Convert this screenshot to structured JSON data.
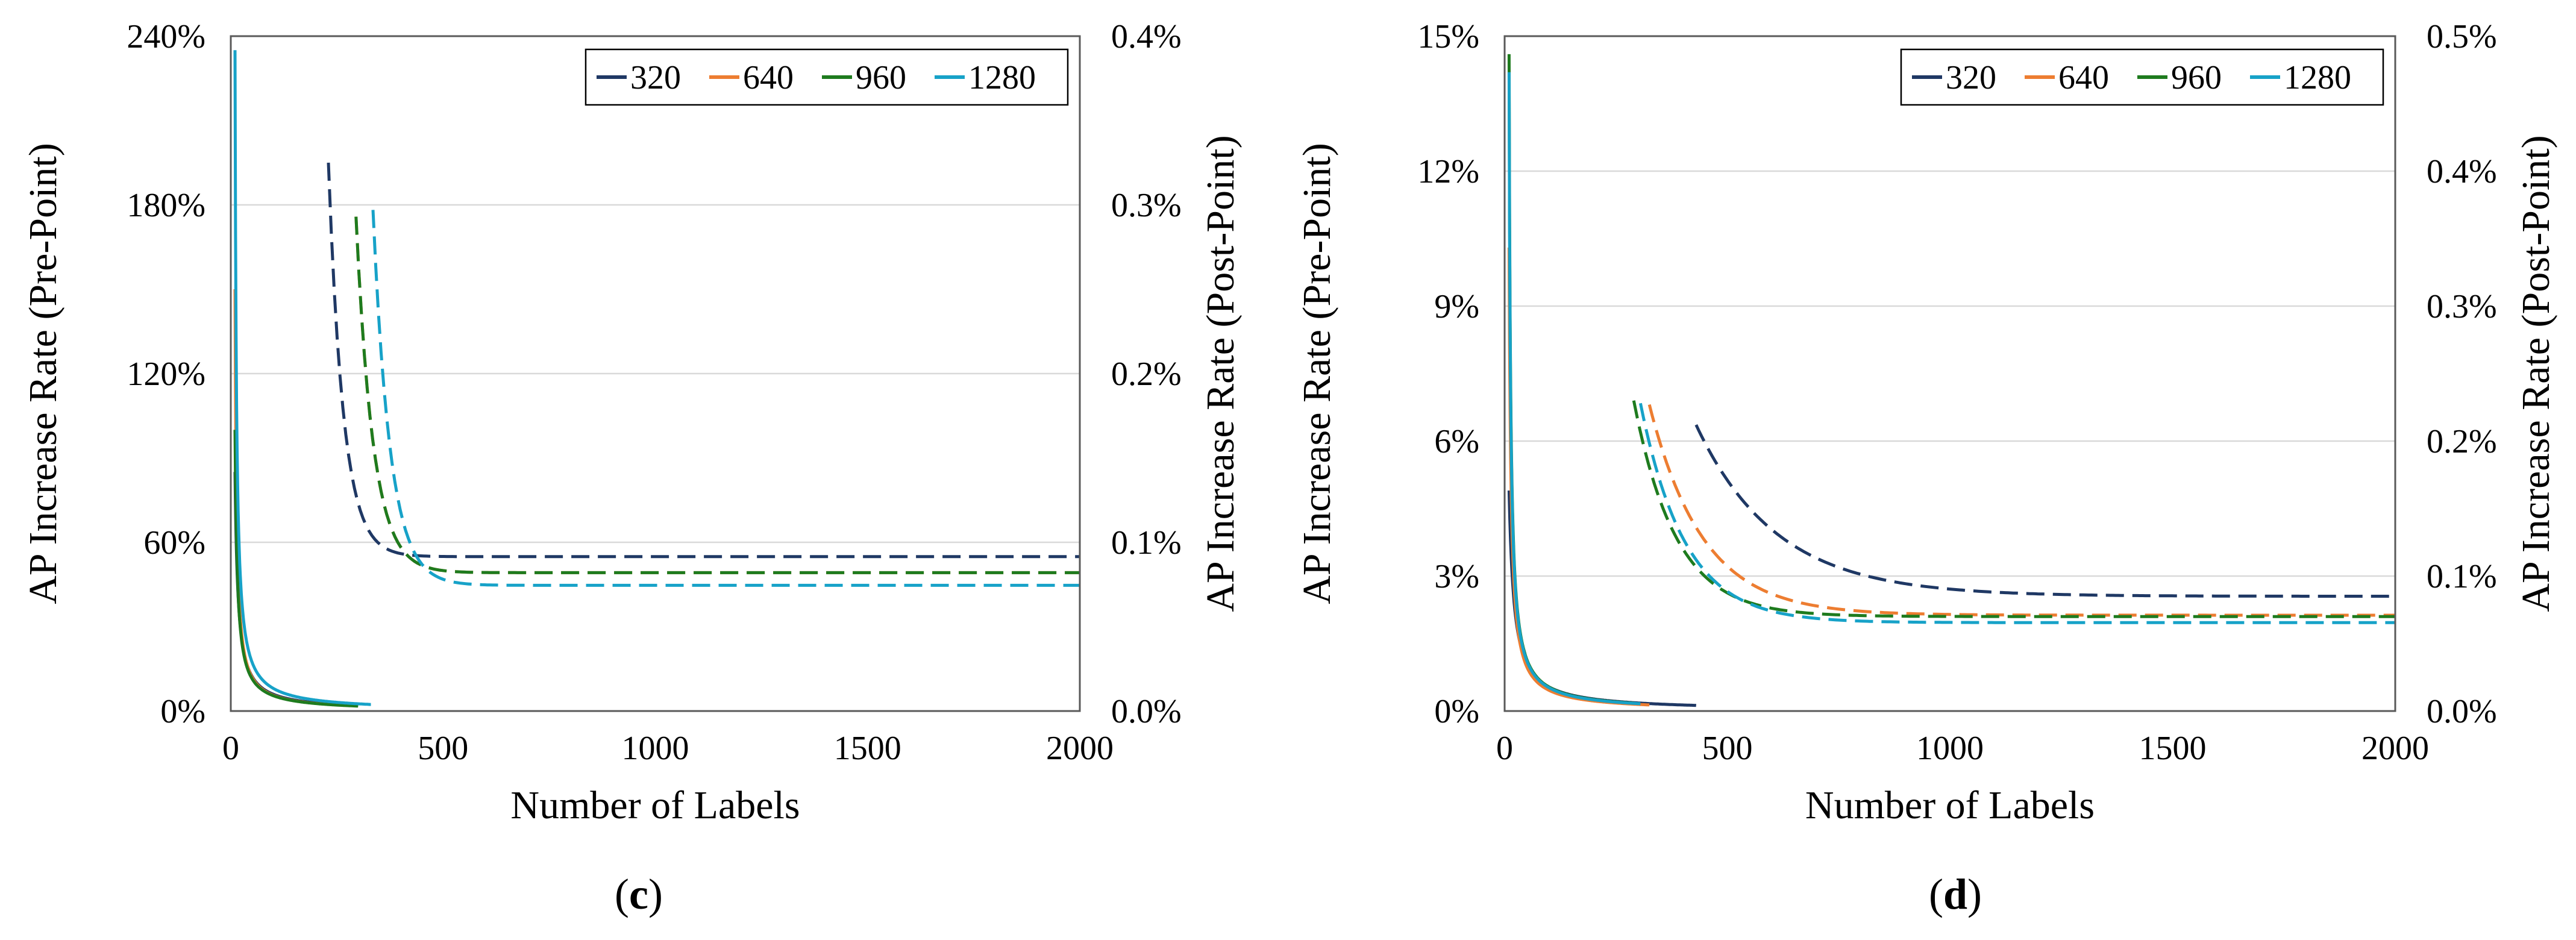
{
  "colors": {
    "320": "#1f3864",
    "640": "#ed7d31",
    "960": "#1e7b1e",
    "1280": "#17a2c8",
    "grid": "#d9d9d9",
    "frame": "#595959"
  },
  "chart_data": [
    {
      "type": "line",
      "caption_open": "(",
      "caption_letter": "c",
      "caption_close": ")",
      "xlabel": "Number of Labels",
      "ylabel_left": "AP Increase Rate (Pre-Point)",
      "ylabel_right": "AP Increase Rate (Post-Point)",
      "xlim": [
        0,
        2000
      ],
      "ylim_left": [
        0,
        240
      ],
      "ylim_right": [
        0,
        0.4
      ],
      "x_ticks": [
        "0",
        "500",
        "1000",
        "1500",
        "2000"
      ],
      "y_ticks_left": [
        "0%",
        "60%",
        "120%",
        "180%",
        "240%"
      ],
      "y_ticks_right": [
        "0.0%",
        "0.1%",
        "0.2%",
        "0.3%",
        "0.4%"
      ],
      "grid": "horizontal",
      "legend_position": "top-right",
      "legend": [
        "320",
        "640",
        "960",
        "1280"
      ],
      "series": [
        {
          "name": "320",
          "pre": {
            "x0": 10,
            "x1": 230,
            "y0": 85,
            "ky": 6.8
          },
          "post": {
            "x0": 230,
            "y0": 0.325,
            "a": 0.0915,
            "k": 35
          }
        },
        {
          "name": "640",
          "pre": {
            "x0": 10,
            "x1": 280,
            "y0": 150,
            "ky": 3.5
          },
          "post": {
            "x0": 295,
            "y0": 0.293,
            "a": 0.082,
            "k": 40
          }
        },
        {
          "name": "960",
          "pre": {
            "x0": 10,
            "x1": 300,
            "y0": 100,
            "ky": 5.2
          },
          "post": {
            "x0": 295,
            "y0": 0.293,
            "a": 0.082,
            "k": 40
          }
        },
        {
          "name": "1280",
          "pre": {
            "x0": 10,
            "x1": 330,
            "y0": 235,
            "ky": 3.2
          },
          "post": {
            "x0": 335,
            "y0": 0.297,
            "a": 0.0745,
            "k": 40
          }
        }
      ]
    },
    {
      "type": "line",
      "caption_open": "(",
      "caption_letter": "d",
      "caption_close": ")",
      "xlabel": "Number of Labels",
      "ylabel_left": "AP Increase Rate (Pre-Point)",
      "ylabel_right": "AP Increase Rate (Post-Point)",
      "xlim": [
        0,
        2000
      ],
      "ylim_left": [
        0,
        15
      ],
      "ylim_right": [
        0,
        0.5
      ],
      "x_ticks": [
        "0",
        "500",
        "1000",
        "1500",
        "2000"
      ],
      "y_ticks_left": [
        "0%",
        "3%",
        "6%",
        "9%",
        "12%",
        "15%"
      ],
      "y_ticks_right": [
        "0.0%",
        "0.1%",
        "0.2%",
        "0.3%",
        "0.4%",
        "0.5%"
      ],
      "grid": "horizontal",
      "legend_position": "top-right",
      "legend": [
        "320",
        "640",
        "960",
        "1280"
      ],
      "series": [
        {
          "name": "320",
          "pre": {
            "x0": 10,
            "x1": 430,
            "y0": 4.9,
            "ky": 11
          },
          "post": {
            "x0": 430,
            "y0": 0.212,
            "a": 0.085,
            "k": 180
          }
        },
        {
          "name": "640",
          "pre": {
            "x0": 10,
            "x1": 325,
            "y0": 10.3,
            "ky": 4.2
          },
          "post": {
            "x0": 325,
            "y0": 0.227,
            "a": 0.071,
            "k": 120
          }
        },
        {
          "name": "960",
          "pre": {
            "x0": 10,
            "x1": 290,
            "y0": 14.6,
            "ky": 3.4
          },
          "post": {
            "x0": 290,
            "y0": 0.23,
            "a": 0.07,
            "k": 95
          }
        },
        {
          "name": "1280",
          "pre": {
            "x0": 10,
            "x1": 305,
            "y0": 14.2,
            "ky": 3.4
          },
          "post": {
            "x0": 305,
            "y0": 0.228,
            "a": 0.0655,
            "k": 100
          }
        }
      ]
    }
  ]
}
